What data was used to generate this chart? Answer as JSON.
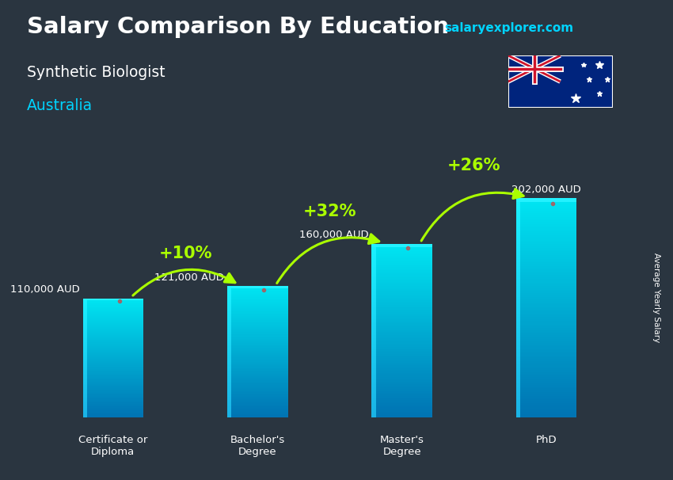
{
  "title_line1": "Salary Comparison By Education",
  "subtitle": "Synthetic Biologist",
  "country": "Australia",
  "watermark": "salaryexplorer.com",
  "ylabel": "Average Yearly Salary",
  "categories": [
    "Certificate or\nDiploma",
    "Bachelor's\nDegree",
    "Master's\nDegree",
    "PhD"
  ],
  "values": [
    110000,
    121000,
    160000,
    202000
  ],
  "value_labels": [
    "110,000 AUD",
    "121,000 AUD",
    "160,000 AUD",
    "202,000 AUD"
  ],
  "pct_changes": [
    "+10%",
    "+32%",
    "+26%"
  ],
  "background_color": "#2a3540",
  "title_color": "#ffffff",
  "subtitle_color": "#ffffff",
  "country_color": "#00d4ff",
  "watermark_color": "#00d4ff",
  "label_color": "#ffffff",
  "pct_color": "#aaff00",
  "arrow_color": "#aaff00",
  "bar_left_color": "#00cfff",
  "bar_main_color": "#00b8e0",
  "bar_dark_color": "#0088bb",
  "figsize": [
    8.5,
    6.06
  ],
  "dpi": 100
}
